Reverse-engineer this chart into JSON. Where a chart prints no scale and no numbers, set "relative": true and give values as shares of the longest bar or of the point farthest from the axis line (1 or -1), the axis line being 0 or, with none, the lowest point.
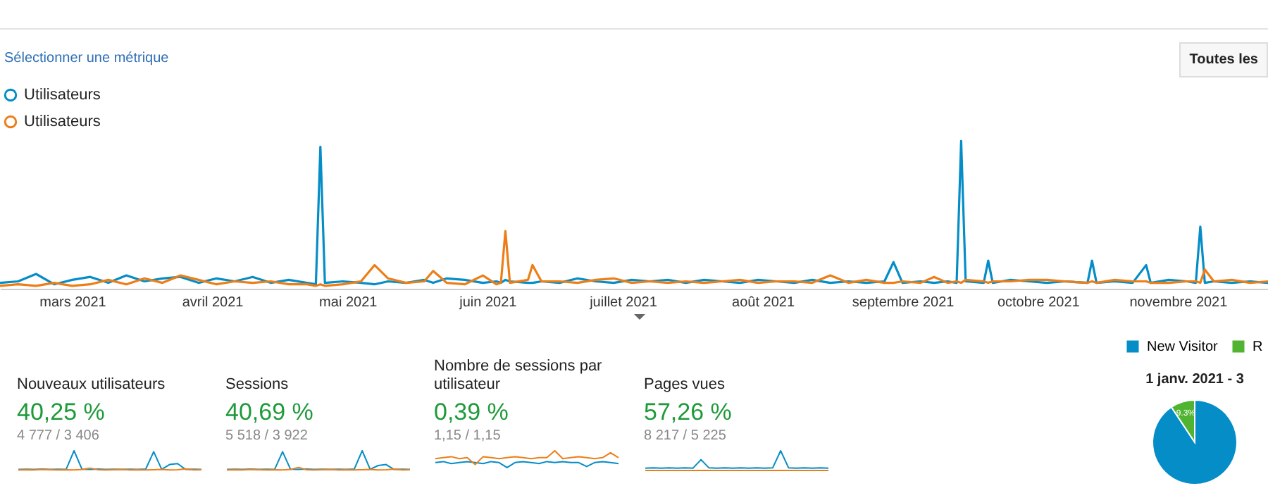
{
  "chart_data": [
    {
      "type": "line",
      "relative": true,
      "legend": "top left",
      "marker": "none",
      "line_style": "solid",
      "annotations": [
        "Sélectionner une métrique",
        "Toutes les"
      ],
      "x": [
        "2021-02-13",
        "2021-02-17",
        "2021-02-21",
        "2021-02-25",
        "2021-03-01",
        "2021-03-05",
        "2021-03-09",
        "2021-03-13",
        "2021-03-17",
        "2021-03-21",
        "2021-03-25",
        "2021-03-29",
        "2021-04-02",
        "2021-04-06",
        "2021-04-10",
        "2021-04-14",
        "2021-04-18",
        "2021-04-22",
        "2021-04-24",
        "2021-04-25",
        "2021-04-26",
        "2021-04-30",
        "2021-05-04",
        "2021-05-07",
        "2021-05-10",
        "2021-05-14",
        "2021-05-18",
        "2021-05-20",
        "2021-05-23",
        "2021-05-27",
        "2021-05-31",
        "2021-06-03",
        "2021-06-04",
        "2021-06-05",
        "2021-06-06",
        "2021-06-10",
        "2021-06-11",
        "2021-06-13",
        "2021-06-17",
        "2021-06-21",
        "2021-06-25",
        "2021-06-29",
        "2021-07-03",
        "2021-07-07",
        "2021-07-11",
        "2021-07-15",
        "2021-07-19",
        "2021-07-23",
        "2021-07-27",
        "2021-07-31",
        "2021-08-04",
        "2021-08-08",
        "2021-08-12",
        "2021-08-16",
        "2021-08-20",
        "2021-08-24",
        "2021-08-28",
        "2021-08-30",
        "2021-09-01",
        "2021-09-05",
        "2021-09-08",
        "2021-09-11",
        "2021-09-13",
        "2021-09-14",
        "2021-09-15",
        "2021-09-19",
        "2021-09-20",
        "2021-09-21",
        "2021-09-25",
        "2021-09-29",
        "2021-10-03",
        "2021-10-07",
        "2021-10-12",
        "2021-10-13",
        "2021-10-14",
        "2021-10-18",
        "2021-10-22",
        "2021-10-25",
        "2021-10-26",
        "2021-10-30",
        "2021-11-03",
        "2021-11-05",
        "2021-11-06",
        "2021-11-07",
        "2021-11-09",
        "2021-11-13",
        "2021-11-17",
        "2021-11-21"
      ],
      "xlim": [
        "2021-02-13",
        "2021-11-21"
      ],
      "xticks": [
        {
          "value": "2021-03-01",
          "label": "mars 2021"
        },
        {
          "value": "2021-04-01",
          "label": "avril 2021"
        },
        {
          "value": "2021-05-01",
          "label": "mai 2021"
        },
        {
          "value": "2021-06-01",
          "label": "juin 2021"
        },
        {
          "value": "2021-07-01",
          "label": "juillet 2021"
        },
        {
          "value": "2021-08-01",
          "label": "août 2021"
        },
        {
          "value": "2021-09-01",
          "label": "septembre 2021"
        },
        {
          "value": "2021-10-01",
          "label": "octobre 2021"
        },
        {
          "value": "2021-11-01",
          "label": "novembre 2021"
        }
      ],
      "series": [
        {
          "name": "Utilisateurs",
          "color": "#058dc7",
          "values": [
            0.04,
            0.05,
            0.1,
            0.03,
            0.06,
            0.08,
            0.04,
            0.09,
            0.05,
            0.07,
            0.08,
            0.04,
            0.07,
            0.05,
            0.08,
            0.04,
            0.06,
            0.04,
            0.03,
            0.96,
            0.04,
            0.05,
            0.04,
            0.03,
            0.05,
            0.04,
            0.06,
            0.04,
            0.07,
            0.06,
            0.04,
            0.05,
            0.04,
            0.06,
            0.05,
            0.04,
            0.04,
            0.05,
            0.04,
            0.07,
            0.05,
            0.04,
            0.06,
            0.05,
            0.06,
            0.04,
            0.06,
            0.05,
            0.04,
            0.06,
            0.05,
            0.04,
            0.06,
            0.04,
            0.05,
            0.04,
            0.05,
            0.18,
            0.04,
            0.05,
            0.04,
            0.05,
            0.04,
            1,
            0.05,
            0.04,
            0.19,
            0.04,
            0.06,
            0.05,
            0.04,
            0.05,
            0.04,
            0.19,
            0.04,
            0.05,
            0.04,
            0.16,
            0.04,
            0.06,
            0.05,
            0.04,
            0.42,
            0.04,
            0.05,
            0.04,
            0.05,
            0.04
          ]
        },
        {
          "name": "Utilisateurs",
          "color": "#ed7e17",
          "values": [
            0.02,
            0.03,
            0.02,
            0.04,
            0.02,
            0.03,
            0.06,
            0.03,
            0.07,
            0.04,
            0.09,
            0.06,
            0.03,
            0.05,
            0.04,
            0.05,
            0.03,
            0.03,
            0.02,
            0.03,
            0.02,
            0.03,
            0.05,
            0.16,
            0.07,
            0.04,
            0.05,
            0.12,
            0.04,
            0.03,
            0.09,
            0.03,
            0.04,
            0.39,
            0.04,
            0.06,
            0.16,
            0.05,
            0.05,
            0.04,
            0.06,
            0.07,
            0.04,
            0.05,
            0.04,
            0.05,
            0.04,
            0.05,
            0.06,
            0.04,
            0.05,
            0.05,
            0.04,
            0.09,
            0.04,
            0.06,
            0.04,
            0.04,
            0.05,
            0.04,
            0.08,
            0.04,
            0.05,
            0.04,
            0.06,
            0.05,
            0.04,
            0.05,
            0.05,
            0.06,
            0.06,
            0.05,
            0.04,
            0.05,
            0.04,
            0.06,
            0.05,
            0.05,
            0.04,
            0.04,
            0.05,
            0.05,
            0.04,
            0.13,
            0.05,
            0.06,
            0.04,
            0.05
          ]
        }
      ]
    },
    {
      "type": "line",
      "relative": true,
      "title": "Nouveaux utilisateurs",
      "annotations": [
        "40,25 %",
        "4 777 / 3 406"
      ],
      "categories": [
        null,
        null,
        null,
        null,
        null,
        null,
        null,
        null,
        null,
        null,
        null,
        null,
        null,
        null,
        null,
        null,
        null,
        null,
        null,
        null,
        null,
        null,
        null,
        null
      ],
      "series": [
        {
          "color": "#058dc7",
          "values": [
            0.05,
            0.06,
            0.05,
            0.07,
            0.05,
            0.06,
            0.05,
            1,
            0.06,
            0.05,
            0.07,
            0.05,
            0.06,
            0.05,
            0.06,
            0.05,
            0.07,
            0.95,
            0.06,
            0.3,
            0.35,
            0.05,
            0.06,
            0.05
          ]
        },
        {
          "color": "#ed7e17",
          "values": [
            0.03,
            0.04,
            0.03,
            0.05,
            0.04,
            0.03,
            0.04,
            0.03,
            0.05,
            0.12,
            0.04,
            0.03,
            0.04,
            0.05,
            0.03,
            0.04,
            0.03,
            0.04,
            0.05,
            0.03,
            0.04,
            0.08,
            0.03,
            0.04
          ]
        }
      ]
    },
    {
      "type": "line",
      "relative": true,
      "title": "Sessions",
      "annotations": [
        "40,69 %",
        "5 518 / 3 922"
      ],
      "categories": [
        null,
        null,
        null,
        null,
        null,
        null,
        null,
        null,
        null,
        null,
        null,
        null,
        null,
        null,
        null,
        null,
        null,
        null,
        null,
        null,
        null,
        null,
        null,
        null
      ],
      "series": [
        {
          "color": "#058dc7",
          "values": [
            0.05,
            0.06,
            0.05,
            0.07,
            0.05,
            0.06,
            0.05,
            0.95,
            0.06,
            0.05,
            0.07,
            0.05,
            0.06,
            0.05,
            0.06,
            0.05,
            0.07,
            1,
            0.06,
            0.25,
            0.3,
            0.05,
            0.06,
            0.05
          ]
        },
        {
          "color": "#ed7e17",
          "values": [
            0.03,
            0.04,
            0.03,
            0.05,
            0.04,
            0.03,
            0.04,
            0.03,
            0.05,
            0.15,
            0.04,
            0.03,
            0.04,
            0.05,
            0.03,
            0.04,
            0.03,
            0.04,
            0.05,
            0.03,
            0.04,
            0.07,
            0.03,
            0.04
          ]
        }
      ]
    },
    {
      "type": "line",
      "relative": true,
      "title": "Nombre de sessions par utilisateur",
      "annotations": [
        "0,39 %",
        "1,15 / 1,15"
      ],
      "categories": [
        null,
        null,
        null,
        null,
        null,
        null,
        null,
        null,
        null,
        null,
        null,
        null,
        null,
        null,
        null,
        null,
        null,
        null,
        null,
        null,
        null,
        null,
        null,
        null
      ],
      "series": [
        {
          "color": "#058dc7",
          "values": [
            0.4,
            0.45,
            0.35,
            0.4,
            0.45,
            0.4,
            0.35,
            0.45,
            0.4,
            0.15,
            0.4,
            0.45,
            0.4,
            0.35,
            0.45,
            0.4,
            0.45,
            0.4,
            0.4,
            0.2,
            0.4,
            0.45,
            0.4,
            0.35
          ]
        },
        {
          "color": "#ed7e17",
          "values": [
            0.6,
            0.65,
            0.7,
            0.6,
            0.65,
            0.3,
            0.7,
            0.65,
            0.6,
            0.65,
            0.7,
            0.65,
            0.6,
            0.65,
            0.65,
            1,
            0.6,
            0.65,
            0.7,
            0.65,
            0.6,
            0.65,
            0.9,
            0.65
          ]
        }
      ]
    },
    {
      "type": "line",
      "relative": true,
      "title": "Pages vues",
      "annotations": [
        "57,26 %",
        "8 217 / 5 225"
      ],
      "categories": [
        null,
        null,
        null,
        null,
        null,
        null,
        null,
        null,
        null,
        null,
        null,
        null,
        null,
        null,
        null,
        null,
        null,
        null,
        null,
        null,
        null,
        null,
        null,
        null
      ],
      "series": [
        {
          "color": "#ed7e17",
          "values": [
            0,
            0,
            0,
            0,
            0,
            0,
            0,
            0,
            0,
            0,
            0,
            0,
            0,
            0,
            0,
            0,
            0,
            0,
            0,
            0,
            0,
            0,
            0,
            0
          ]
        },
        {
          "color": "#058dc7",
          "values": [
            0.12,
            0.13,
            0.12,
            0.13,
            0.12,
            0.13,
            0.12,
            0.55,
            0.13,
            0.12,
            0.13,
            0.12,
            0.13,
            0.12,
            0.13,
            0.12,
            0.13,
            1,
            0.13,
            0.12,
            0.13,
            0.12,
            0.13,
            0.12
          ]
        }
      ]
    },
    {
      "type": "pie",
      "title": "1 janv. 2021 - 3",
      "legend": "top",
      "categories": [
        "New Visitor",
        "R"
      ],
      "values": [
        90.7,
        9.3
      ],
      "colors": [
        "#058dc7",
        "#50b432"
      ],
      "value_labels": [
        null,
        "9.3%"
      ]
    }
  ]
}
